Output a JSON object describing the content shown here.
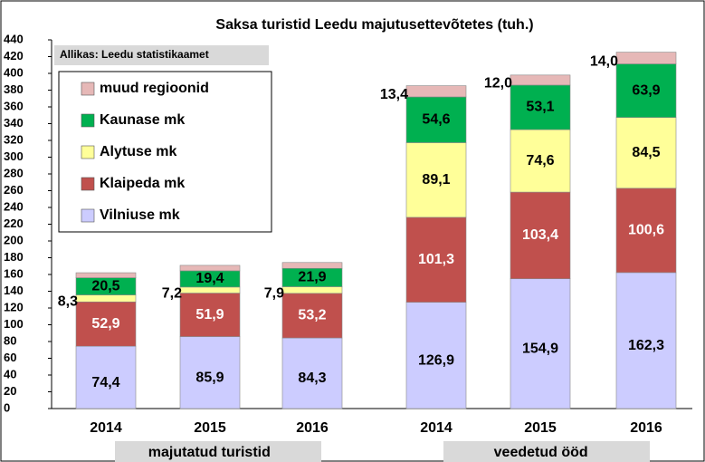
{
  "chart_data": {
    "type": "bar",
    "stacked": true,
    "title": "Saksa turistid Leedu majutusettevõtetes (tuh.)",
    "source": "Allikas: Leedu statistikaamet",
    "categories": [
      "2014",
      "2015",
      "2016",
      "2014",
      "2015",
      "2016"
    ],
    "groups": [
      {
        "label": "majutatud turistid",
        "categories": [
          0,
          1,
          2
        ]
      },
      {
        "label": "veedetud ööd",
        "categories": [
          3,
          4,
          5
        ]
      }
    ],
    "series": [
      {
        "name": "Vilniuse mk",
        "color": "#ccccff",
        "values": [
          74.4,
          85.9,
          84.3,
          126.9,
          154.9,
          162.3
        ],
        "value_labels": [
          "74,4",
          "85,9",
          "84,3",
          "126,9",
          "154,9",
          "162,3"
        ]
      },
      {
        "name": "Klaipeda mk",
        "color": "#c0504d",
        "values": [
          52.9,
          51.9,
          53.2,
          101.3,
          103.4,
          100.6
        ],
        "value_labels": [
          "52,9",
          "51,9",
          "53,2",
          "101,3",
          "103,4",
          "100,6"
        ]
      },
      {
        "name": "Alytuse mk",
        "color": "#ffff99",
        "values": [
          8.3,
          7.2,
          7.9,
          89.1,
          74.6,
          84.5
        ],
        "value_labels": [
          "8,3",
          "7,2",
          "7,9",
          "89,1",
          "74,6",
          "84,5"
        ]
      },
      {
        "name": "Kaunase mk",
        "color": "#00b050",
        "values": [
          20.5,
          19.4,
          21.9,
          54.6,
          53.1,
          63.9
        ],
        "value_labels": [
          "20,5",
          "19,4",
          "21,9",
          "54,6",
          "53,1",
          "63,9"
        ]
      },
      {
        "name": "muud regioonid",
        "color": "#e6b8b7",
        "values": [
          6,
          6.5,
          7,
          13.4,
          12.0,
          14.0
        ],
        "value_labels": [
          null,
          null,
          null,
          "13,4",
          "12,0",
          "14,0"
        ]
      }
    ],
    "ylim": [
      0,
      440
    ],
    "yticks": [
      0,
      20,
      40,
      60,
      80,
      100,
      120,
      140,
      160,
      180,
      200,
      220,
      240,
      260,
      280,
      300,
      320,
      340,
      360,
      380,
      400,
      420,
      440
    ],
    "legend": "upper left"
  }
}
